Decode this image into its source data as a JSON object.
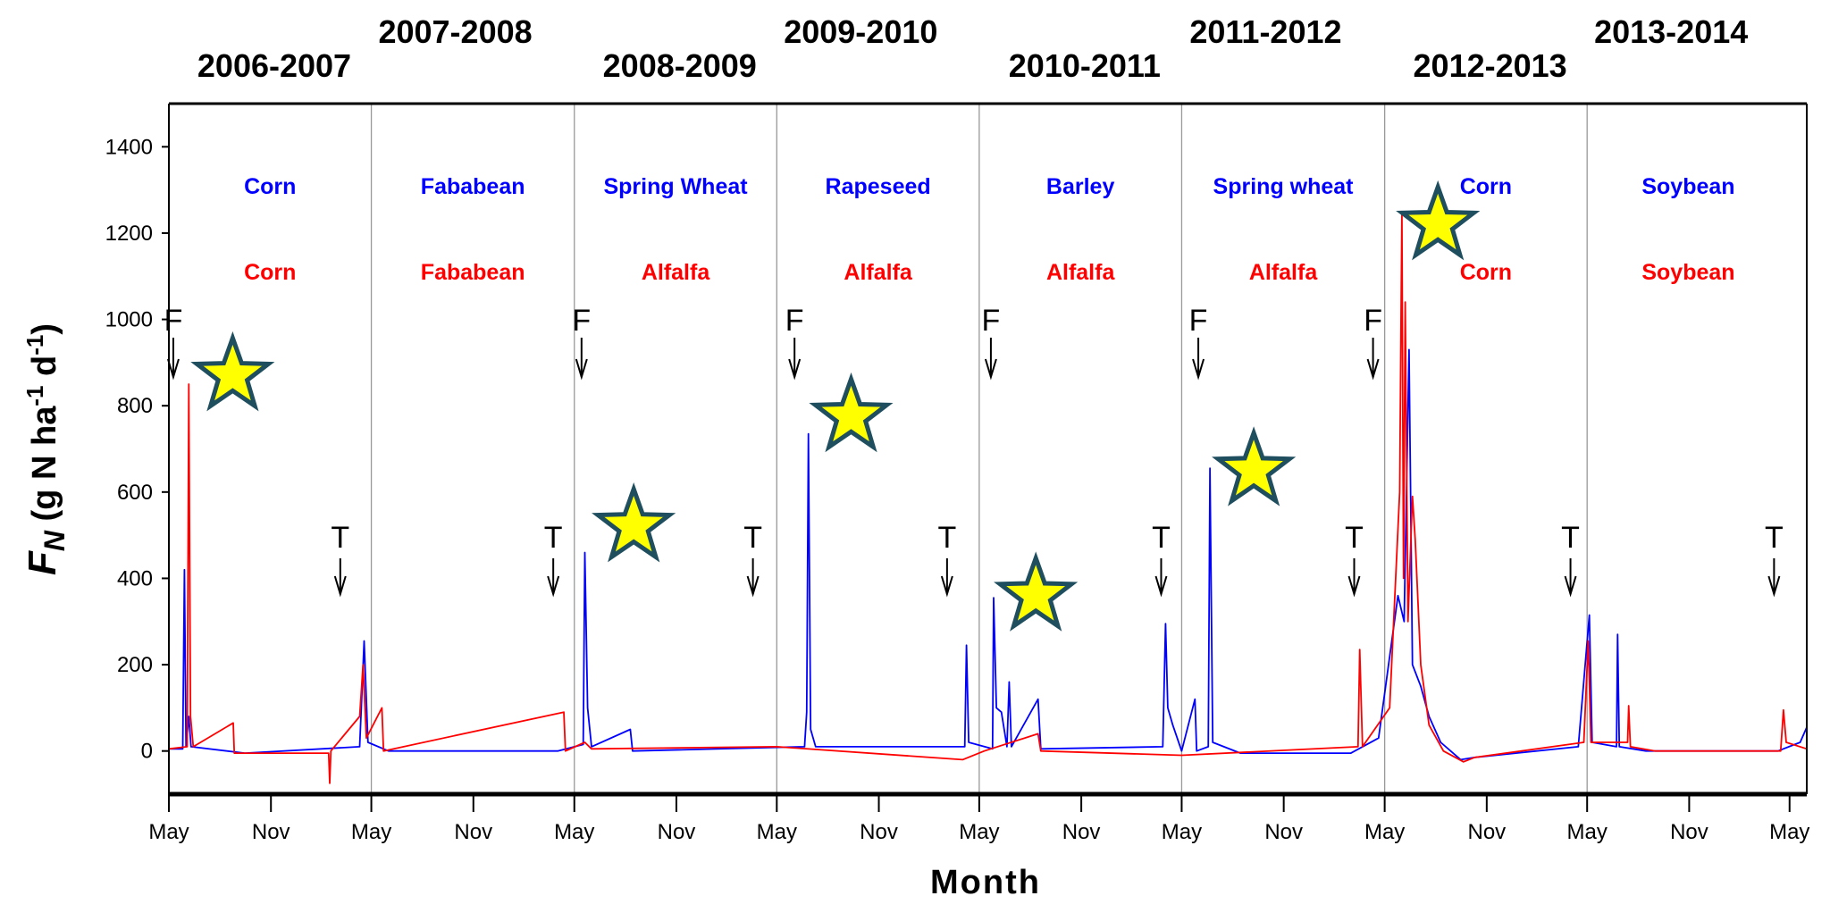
{
  "chart_data": {
    "type": "line",
    "xlabel": "Month",
    "ylabel": {
      "main": "F",
      "sub": "N",
      "rest1": " (g N ha",
      "sup1": "-1",
      "rest2": " d",
      "sup2": "-1",
      "rest3": ")"
    },
    "xlim": [
      "2006-05-01",
      "2014-06-01"
    ],
    "ylim": [
      -100,
      1500
    ],
    "yticks": [
      0,
      200,
      400,
      600,
      800,
      1000,
      1200,
      1400
    ],
    "xticks": [
      {
        "date": "2006-05-01",
        "label": "May"
      },
      {
        "date": "2006-11-01",
        "label": "Nov"
      },
      {
        "date": "2007-05-01",
        "label": "May"
      },
      {
        "date": "2007-11-01",
        "label": "Nov"
      },
      {
        "date": "2008-05-01",
        "label": "May"
      },
      {
        "date": "2008-11-01",
        "label": "Nov"
      },
      {
        "date": "2009-05-01",
        "label": "May"
      },
      {
        "date": "2009-11-01",
        "label": "Nov"
      },
      {
        "date": "2010-05-01",
        "label": "May"
      },
      {
        "date": "2010-11-01",
        "label": "Nov"
      },
      {
        "date": "2011-05-01",
        "label": "May"
      },
      {
        "date": "2011-11-01",
        "label": "Nov"
      },
      {
        "date": "2012-05-01",
        "label": "May"
      },
      {
        "date": "2012-11-01",
        "label": "Nov"
      },
      {
        "date": "2013-05-01",
        "label": "May"
      },
      {
        "date": "2013-11-01",
        "label": "Nov"
      },
      {
        "date": "2014-05-01",
        "label": "May"
      }
    ],
    "grid": false,
    "colors": {
      "blue": "#0000ff",
      "red": "#ff0000",
      "star_fill": "#ffff00",
      "star_edge": "#1f4e5f",
      "separator": "#999999"
    },
    "seasons": [
      {
        "label": "2006-2007",
        "start": "2006-05-01",
        "end": "2007-05-01",
        "blue_crop": "Corn",
        "red_crop": "Corn"
      },
      {
        "label": "2007-2008",
        "start": "2007-05-01",
        "end": "2008-05-01",
        "blue_crop": "Fababean",
        "red_crop": "Fababean"
      },
      {
        "label": "2008-2009",
        "start": "2008-05-01",
        "end": "2009-05-01",
        "blue_crop": "Spring Wheat",
        "red_crop": "Alfalfa"
      },
      {
        "label": "2009-2010",
        "start": "2009-05-01",
        "end": "2010-05-01",
        "blue_crop": "Rapeseed",
        "red_crop": "Alfalfa"
      },
      {
        "label": "2010-2011",
        "start": "2010-05-01",
        "end": "2011-05-01",
        "blue_crop": "Barley",
        "red_crop": "Alfalfa"
      },
      {
        "label": "2011-2012",
        "start": "2011-05-01",
        "end": "2012-05-01",
        "blue_crop": "Spring wheat",
        "red_crop": "Alfalfa"
      },
      {
        "label": "2012-2013",
        "start": "2012-05-01",
        "end": "2013-05-01",
        "blue_crop": "Corn",
        "red_crop": "Corn"
      },
      {
        "label": "2013-2014",
        "start": "2013-05-01",
        "end": "2014-05-01",
        "blue_crop": "Soybean",
        "red_crop": "Soybean"
      }
    ],
    "fertilization_markers": {
      "label": "F",
      "dates": [
        "2006-05-09",
        "2008-05-14",
        "2009-06-02",
        "2010-05-22",
        "2011-05-31",
        "2012-04-10"
      ]
    },
    "tillage_markers": {
      "label": "T",
      "dates": [
        "2007-03-06",
        "2008-03-24",
        "2009-03-19",
        "2010-03-04",
        "2011-03-25",
        "2012-03-07",
        "2013-04-01",
        "2014-04-03"
      ]
    },
    "stars": [
      {
        "date": "2006-08-24",
        "y": 870
      },
      {
        "date": "2008-08-16",
        "y": 520
      },
      {
        "date": "2009-09-12",
        "y": 775
      },
      {
        "date": "2010-08-11",
        "y": 360
      },
      {
        "date": "2011-09-08",
        "y": 650
      },
      {
        "date": "2012-08-05",
        "y": 1220
      }
    ],
    "series": [
      {
        "color": "#0000ff",
        "points": [
          [
            "2006-05-01",
            5
          ],
          [
            "2006-05-26",
            5
          ],
          [
            "2006-05-29",
            420
          ],
          [
            "2006-06-01",
            10
          ],
          [
            "2006-06-06",
            80
          ],
          [
            "2006-06-10",
            10
          ],
          [
            "2006-09-15",
            -5
          ],
          [
            "2007-04-10",
            10
          ],
          [
            "2007-04-18",
            255
          ],
          [
            "2007-04-25",
            20
          ],
          [
            "2007-06-01",
            0
          ],
          [
            "2008-04-01",
            0
          ],
          [
            "2008-05-17",
            15
          ],
          [
            "2008-05-20",
            460
          ],
          [
            "2008-05-25",
            100
          ],
          [
            "2008-06-01",
            10
          ],
          [
            "2008-08-10",
            50
          ],
          [
            "2008-08-14",
            0
          ],
          [
            "2009-06-20",
            10
          ],
          [
            "2009-06-24",
            90
          ],
          [
            "2009-06-27",
            735
          ],
          [
            "2009-07-01",
            50
          ],
          [
            "2009-07-10",
            10
          ],
          [
            "2010-04-05",
            10
          ],
          [
            "2010-04-08",
            245
          ],
          [
            "2010-04-12",
            20
          ],
          [
            "2010-05-25",
            5
          ],
          [
            "2010-05-27",
            355
          ],
          [
            "2010-06-01",
            100
          ],
          [
            "2010-06-10",
            90
          ],
          [
            "2010-06-20",
            10
          ],
          [
            "2010-06-24",
            160
          ],
          [
            "2010-06-28",
            10
          ],
          [
            "2010-08-15",
            120
          ],
          [
            "2010-08-20",
            5
          ],
          [
            "2011-03-28",
            10
          ],
          [
            "2011-04-02",
            295
          ],
          [
            "2011-04-06",
            100
          ],
          [
            "2011-04-15",
            60
          ],
          [
            "2011-05-01",
            0
          ],
          [
            "2011-05-25",
            120
          ],
          [
            "2011-05-28",
            0
          ],
          [
            "2011-06-18",
            10
          ],
          [
            "2011-06-21",
            655
          ],
          [
            "2011-06-26",
            20
          ],
          [
            "2011-08-15",
            -5
          ],
          [
            "2012-03-01",
            -5
          ],
          [
            "2012-04-20",
            30
          ],
          [
            "2012-05-25",
            360
          ],
          [
            "2012-06-05",
            300
          ],
          [
            "2012-06-14",
            930
          ],
          [
            "2012-06-20",
            200
          ],
          [
            "2012-07-05",
            150
          ],
          [
            "2012-07-20",
            80
          ],
          [
            "2012-08-10",
            20
          ],
          [
            "2012-09-15",
            -20
          ],
          [
            "2012-10-10",
            -15
          ],
          [
            "2013-04-15",
            10
          ],
          [
            "2013-05-05",
            315
          ],
          [
            "2013-05-10",
            20
          ],
          [
            "2013-06-23",
            10
          ],
          [
            "2013-06-25",
            270
          ],
          [
            "2013-06-28",
            10
          ],
          [
            "2013-08-15",
            0
          ],
          [
            "2014-04-10",
            0
          ],
          [
            "2014-05-20",
            20
          ],
          [
            "2014-06-01",
            55
          ]
        ]
      },
      {
        "color": "#ff0000",
        "points": [
          [
            "2006-05-01",
            5
          ],
          [
            "2006-06-03",
            10
          ],
          [
            "2006-06-06",
            850
          ],
          [
            "2006-06-09",
            80
          ],
          [
            "2006-06-14",
            10
          ],
          [
            "2006-08-25",
            65
          ],
          [
            "2006-08-27",
            -5
          ],
          [
            "2007-02-13",
            -5
          ],
          [
            "2007-02-15",
            -75
          ],
          [
            "2007-02-17",
            0
          ],
          [
            "2007-04-10",
            80
          ],
          [
            "2007-04-16",
            200
          ],
          [
            "2007-04-22",
            30
          ],
          [
            "2007-05-20",
            100
          ],
          [
            "2007-05-23",
            0
          ],
          [
            "2008-04-12",
            90
          ],
          [
            "2008-04-15",
            0
          ],
          [
            "2008-05-20",
            20
          ],
          [
            "2008-06-01",
            5
          ],
          [
            "2009-05-01",
            10
          ],
          [
            "2010-04-01",
            -20
          ],
          [
            "2010-05-10",
            0
          ],
          [
            "2010-08-15",
            40
          ],
          [
            "2010-08-20",
            0
          ],
          [
            "2011-05-01",
            -10
          ],
          [
            "2012-03-14",
            10
          ],
          [
            "2012-03-17",
            235
          ],
          [
            "2012-03-22",
            10
          ],
          [
            "2012-05-10",
            100
          ],
          [
            "2012-05-28",
            600
          ],
          [
            "2012-06-01",
            1250
          ],
          [
            "2012-06-04",
            400
          ],
          [
            "2012-06-07",
            1040
          ],
          [
            "2012-06-12",
            300
          ],
          [
            "2012-06-20",
            590
          ],
          [
            "2012-06-25",
            490
          ],
          [
            "2012-07-05",
            200
          ],
          [
            "2012-07-20",
            60
          ],
          [
            "2012-08-15",
            0
          ],
          [
            "2012-09-20",
            -25
          ],
          [
            "2012-10-10",
            -15
          ],
          [
            "2013-04-25",
            20
          ],
          [
            "2013-05-03",
            255
          ],
          [
            "2013-05-08",
            20
          ],
          [
            "2013-07-13",
            20
          ],
          [
            "2013-07-15",
            105
          ],
          [
            "2013-07-18",
            10
          ],
          [
            "2013-09-01",
            0
          ],
          [
            "2014-04-15",
            0
          ],
          [
            "2014-04-20",
            95
          ],
          [
            "2014-04-25",
            20
          ],
          [
            "2014-06-01",
            5
          ]
        ]
      }
    ]
  }
}
